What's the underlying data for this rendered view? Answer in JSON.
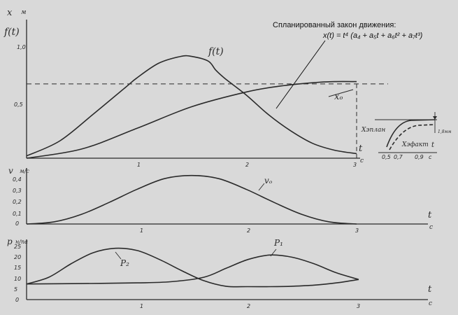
{
  "annotation": {
    "title": "Спланированный закон движения:",
    "formula": "x(t) = t⁴ (a₄ + a₅t + a₆t² + a₇t³)"
  },
  "chart_data": [
    {
      "type": "line",
      "ylabel": "x",
      "ylabel2": "f(t)",
      "yunit": "м",
      "xlabel": "t",
      "xunit": "c",
      "xlim": [
        0,
        3
      ],
      "ylim": [
        0,
        1.2
      ],
      "xticks": [
        "1",
        "2",
        "3"
      ],
      "yticks": [
        "0,5",
        "1,0"
      ],
      "target_level": 0.65,
      "series": [
        {
          "name": "f(t)",
          "x": [
            0,
            0.3,
            0.6,
            0.9,
            1.0,
            1.2,
            1.4,
            1.5,
            1.65,
            1.72,
            1.8,
            2.0,
            2.2,
            2.4,
            2.6,
            2.8,
            3.0
          ],
          "y": [
            0.02,
            0.15,
            0.38,
            0.62,
            0.7,
            0.83,
            0.89,
            0.89,
            0.85,
            0.77,
            0.7,
            0.55,
            0.38,
            0.24,
            0.13,
            0.07,
            0.04
          ]
        },
        {
          "name": "xₒ",
          "x": [
            0,
            0.5,
            1.0,
            1.5,
            2.0,
            2.3,
            2.6,
            2.8,
            3.0
          ],
          "y": [
            0,
            0.08,
            0.26,
            0.45,
            0.58,
            0.63,
            0.66,
            0.67,
            0.67
          ]
        }
      ],
      "inset": {
        "labels": [
          "Xэплан",
          "Xэфакт",
          "t",
          "1,8мм"
        ],
        "xticks": [
          "0,5",
          "0,7",
          "0,9",
          "c"
        ]
      }
    },
    {
      "type": "line",
      "ylabel": "v",
      "yunit": "м/с",
      "xlabel": "t",
      "xunit": "c",
      "xlim": [
        0,
        3
      ],
      "ylim": [
        0,
        0.5
      ],
      "xticks": [
        "1",
        "2",
        "3"
      ],
      "yticks": [
        "0",
        "0,1",
        "0,2",
        "0,3",
        "0,4"
      ],
      "series": [
        {
          "name": "vₒ",
          "x": [
            0,
            0.25,
            0.5,
            0.75,
            1.0,
            1.25,
            1.5,
            1.75,
            2.0,
            2.25,
            2.5,
            2.75,
            3.0
          ],
          "y": [
            0,
            0.02,
            0.09,
            0.2,
            0.32,
            0.42,
            0.45,
            0.42,
            0.32,
            0.2,
            0.09,
            0.02,
            0
          ]
        }
      ]
    },
    {
      "type": "line",
      "ylabel": "p",
      "yunit": "н/па",
      "xlabel": "t",
      "xunit": "c",
      "xlim": [
        0,
        3
      ],
      "ylim": [
        0,
        27
      ],
      "xticks": [
        "1",
        "2",
        "3"
      ],
      "yticks": [
        "0",
        "5",
        "10",
        "15",
        "20",
        "25"
      ],
      "series": [
        {
          "name": "P₁",
          "x": [
            0,
            0.5,
            1.0,
            1.3,
            1.6,
            1.8,
            2.0,
            2.2,
            2.4,
            2.6,
            2.8,
            3.0
          ],
          "y": [
            7,
            7.2,
            7.5,
            8,
            10,
            14,
            18,
            20,
            19,
            16,
            12,
            9
          ]
        },
        {
          "name": "P₂",
          "x": [
            0,
            0.2,
            0.4,
            0.6,
            0.8,
            1.0,
            1.2,
            1.4,
            1.6,
            1.8,
            2.0,
            2.2,
            2.4,
            2.6,
            2.8,
            3.0
          ],
          "y": [
            7,
            10,
            16,
            21,
            23,
            22,
            18,
            13,
            8.5,
            6,
            5.8,
            5.8,
            6,
            6.5,
            7.5,
            9
          ]
        }
      ]
    }
  ]
}
